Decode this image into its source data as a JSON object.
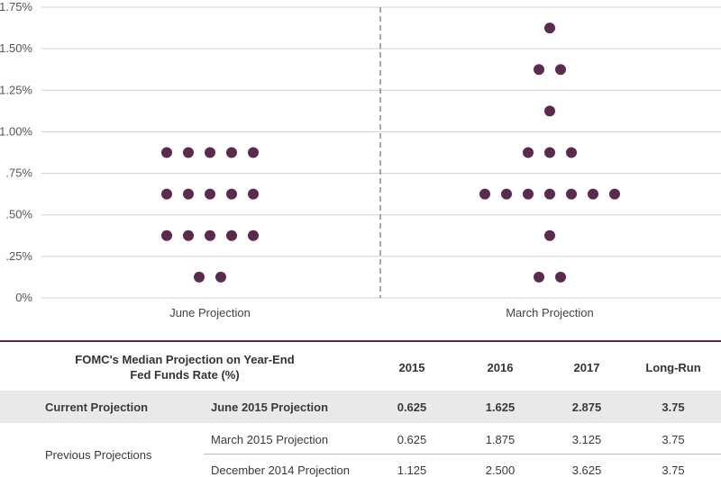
{
  "chart_data": {
    "type": "scatter",
    "title": "",
    "xlabel": "",
    "ylabel": "",
    "ylim": [
      0,
      1.75
    ],
    "y_ticks": [
      0,
      0.25,
      0.5,
      0.75,
      1.0,
      1.25,
      1.5,
      1.75
    ],
    "y_tick_labels": [
      "0%",
      ".25%",
      ".50%",
      ".75%",
      "1.00%",
      "1.25%",
      "1.50%",
      "1.75%"
    ],
    "grid": true,
    "color": "#5b2a4f",
    "divider": "dashed vertical line between groups",
    "groups": [
      {
        "label": "June Projection",
        "rows": [
          {
            "y": 0.125,
            "count": 2
          },
          {
            "y": 0.375,
            "count": 5
          },
          {
            "y": 0.625,
            "count": 5
          },
          {
            "y": 0.875,
            "count": 5
          }
        ]
      },
      {
        "label": "March Projection",
        "rows": [
          {
            "y": 0.125,
            "count": 2
          },
          {
            "y": 0.375,
            "count": 1
          },
          {
            "y": 0.625,
            "count": 7
          },
          {
            "y": 0.875,
            "count": 3
          },
          {
            "y": 1.125,
            "count": 1
          },
          {
            "y": 1.375,
            "count": 2
          },
          {
            "y": 1.625,
            "count": 1
          }
        ]
      }
    ]
  },
  "table": {
    "title_line1": "FOMC's Median Projection on Year-End",
    "title_line2": "Fed Funds Rate (%)",
    "columns": [
      "2015",
      "2016",
      "2017",
      "Long-Run"
    ],
    "current": {
      "group_label": "Current Projection",
      "label": "June 2015 Projection",
      "values": [
        "0.625",
        "1.625",
        "2.875",
        "3.75"
      ]
    },
    "previous_label": "Previous Projections",
    "previous": [
      {
        "label": "March 2015 Projection",
        "values": [
          "0.625",
          "1.875",
          "3.125",
          "3.75"
        ]
      },
      {
        "label": "December 2014 Projection",
        "values": [
          "1.125",
          "2.500",
          "3.625",
          "3.75"
        ]
      }
    ]
  }
}
